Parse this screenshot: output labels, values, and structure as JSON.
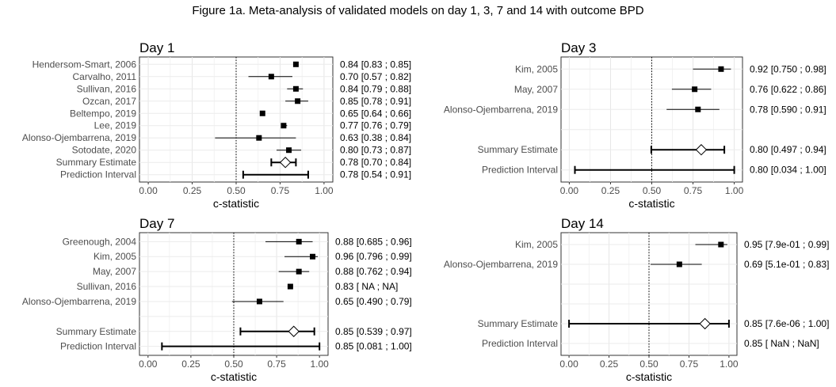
{
  "figure": {
    "title": "Figure 1a. Meta-analysis of validated models on day 1, 3, 7 and 14 with outcome BPD"
  },
  "chart_data": [
    {
      "type": "forest",
      "title": "Day 1",
      "xlabel": "c-statistic",
      "xlim": [
        -0.05,
        1.05
      ],
      "xticks": [
        0,
        0.25,
        0.5,
        0.75,
        1
      ],
      "xtick_labels": [
        "0.00",
        "0.25",
        "0.50",
        "0.75",
        "1.00"
      ],
      "reference_line": 0.5,
      "grid": true,
      "rows": [
        {
          "label": "Hendersom-Smart, 2006",
          "est": 0.84,
          "lo": 0.83,
          "hi": 0.85,
          "text": "0.84 [0.83 ; 0.85]",
          "kind": "study"
        },
        {
          "label": "Carvalho, 2011",
          "est": 0.7,
          "lo": 0.57,
          "hi": 0.82,
          "text": "0.70 [0.57 ; 0.82]",
          "kind": "study"
        },
        {
          "label": "Sullivan, 2016",
          "est": 0.84,
          "lo": 0.79,
          "hi": 0.88,
          "text": "0.84 [0.79 ; 0.88]",
          "kind": "study"
        },
        {
          "label": "Ozcan, 2017",
          "est": 0.85,
          "lo": 0.78,
          "hi": 0.91,
          "text": "0.85 [0.78 ; 0.91]",
          "kind": "study"
        },
        {
          "label": "Beltempo, 2019",
          "est": 0.65,
          "lo": 0.64,
          "hi": 0.66,
          "text": "0.65 [0.64 ; 0.66]",
          "kind": "study"
        },
        {
          "label": "Lee, 2019",
          "est": 0.77,
          "lo": 0.76,
          "hi": 0.79,
          "text": "0.77 [0.76 ; 0.79]",
          "kind": "study"
        },
        {
          "label": "Alonso-Ojembarrena, 2019",
          "est": 0.63,
          "lo": 0.38,
          "hi": 0.84,
          "text": "0.63 [0.38 ; 0.84]",
          "kind": "study"
        },
        {
          "label": "Sotodate, 2020",
          "est": 0.8,
          "lo": 0.73,
          "hi": 0.87,
          "text": "0.80 [0.73 ; 0.87]",
          "kind": "study"
        },
        {
          "label": "Summary Estimate",
          "est": 0.78,
          "lo": 0.7,
          "hi": 0.84,
          "text": "0.78 [0.70 ; 0.84]",
          "kind": "summary"
        },
        {
          "label": "Prediction Interval",
          "est": null,
          "lo": 0.54,
          "hi": 0.91,
          "text": "0.78 [0.54 ; 0.91]",
          "kind": "prediction"
        }
      ]
    },
    {
      "type": "forest",
      "title": "Day 3",
      "xlabel": "c-statistic",
      "xlim": [
        -0.05,
        1.05
      ],
      "xticks": [
        0,
        0.25,
        0.5,
        0.75,
        1
      ],
      "xtick_labels": [
        "0.00",
        "0.25",
        "0.50",
        "0.75",
        "1.00"
      ],
      "reference_line": 0.5,
      "grid": true,
      "rows": [
        {
          "label": "Kim, 2005",
          "est": 0.92,
          "lo": 0.75,
          "hi": 0.98,
          "text": "0.92 [0.750 ; 0.98]",
          "kind": "study"
        },
        {
          "label": "May, 2007",
          "est": 0.76,
          "lo": 0.622,
          "hi": 0.86,
          "text": "0.76 [0.622 ; 0.86]",
          "kind": "study"
        },
        {
          "label": "Alonso-Ojembarrena, 2019",
          "est": 0.78,
          "lo": 0.59,
          "hi": 0.91,
          "text": "0.78 [0.590 ; 0.91]",
          "kind": "study"
        },
        {
          "label": "",
          "est": null,
          "lo": null,
          "hi": null,
          "text": "",
          "kind": "blank"
        },
        {
          "label": "Summary Estimate",
          "est": 0.8,
          "lo": 0.497,
          "hi": 0.94,
          "text": "0.80 [0.497 ; 0.94]",
          "kind": "summary"
        },
        {
          "label": "Prediction Interval",
          "est": null,
          "lo": 0.034,
          "hi": 1.0,
          "text": "0.80 [0.034 ; 1.00]",
          "kind": "prediction"
        }
      ]
    },
    {
      "type": "forest",
      "title": "Day 7",
      "xlabel": "c-statistic",
      "xlim": [
        -0.05,
        1.05
      ],
      "xticks": [
        0,
        0.25,
        0.5,
        0.75,
        1
      ],
      "xtick_labels": [
        "0.00",
        "0.25",
        "0.50",
        "0.75",
        "1.00"
      ],
      "reference_line": 0.5,
      "grid": true,
      "rows": [
        {
          "label": "Greenough, 2004",
          "est": 0.88,
          "lo": 0.685,
          "hi": 0.96,
          "text": "0.88 [0.685 ; 0.96]",
          "kind": "study"
        },
        {
          "label": "Kim, 2005",
          "est": 0.96,
          "lo": 0.796,
          "hi": 0.99,
          "text": "0.96 [0.796 ; 0.99]",
          "kind": "study"
        },
        {
          "label": "May, 2007",
          "est": 0.88,
          "lo": 0.762,
          "hi": 0.94,
          "text": "0.88 [0.762 ; 0.94]",
          "kind": "study"
        },
        {
          "label": "Sullivan, 2016",
          "est": 0.83,
          "lo": null,
          "hi": null,
          "text": "0.83 [   NA ;   NA]",
          "kind": "study"
        },
        {
          "label": "Alonso-Ojembarrena, 2019",
          "est": 0.65,
          "lo": 0.49,
          "hi": 0.79,
          "text": "0.65 [0.490 ; 0.79]",
          "kind": "study"
        },
        {
          "label": "",
          "est": null,
          "lo": null,
          "hi": null,
          "text": "",
          "kind": "blank"
        },
        {
          "label": "Summary Estimate",
          "est": 0.85,
          "lo": 0.539,
          "hi": 0.97,
          "text": "0.85 [0.539 ; 0.97]",
          "kind": "summary"
        },
        {
          "label": "Prediction Interval",
          "est": null,
          "lo": 0.081,
          "hi": 1.0,
          "text": "0.85 [0.081 ; 1.00]",
          "kind": "prediction"
        }
      ]
    },
    {
      "type": "forest",
      "title": "Day 14",
      "xlabel": "c-statistic",
      "xlim": [
        -0.05,
        1.05
      ],
      "xticks": [
        0,
        0.25,
        0.5,
        0.75,
        1
      ],
      "xtick_labels": [
        "0.00",
        "0.25",
        "0.50",
        "0.75",
        "1.00"
      ],
      "reference_line": 0.5,
      "grid": true,
      "rows": [
        {
          "label": "Kim, 2005",
          "est": 0.95,
          "lo": 0.79,
          "hi": 0.99,
          "text": "0.95 [7.9e-01 ; 0.99]",
          "kind": "study"
        },
        {
          "label": "Alonso-Ojembarrena, 2019",
          "est": 0.69,
          "lo": 0.51,
          "hi": 0.83,
          "text": "0.69 [5.1e-01 ; 0.83]",
          "kind": "study"
        },
        {
          "label": "",
          "est": null,
          "lo": null,
          "hi": null,
          "text": "",
          "kind": "blank"
        },
        {
          "label": "",
          "est": null,
          "lo": null,
          "hi": null,
          "text": "",
          "kind": "blank"
        },
        {
          "label": "Summary Estimate",
          "est": 0.85,
          "lo": 7.6e-06,
          "hi": 1.0,
          "text": "0.85 [7.6e-06 ; 1.00]",
          "kind": "summary"
        },
        {
          "label": "Prediction Interval",
          "est": null,
          "lo": null,
          "hi": null,
          "text": "0.85 [   NaN ;  NaN]",
          "kind": "prediction"
        }
      ]
    }
  ]
}
